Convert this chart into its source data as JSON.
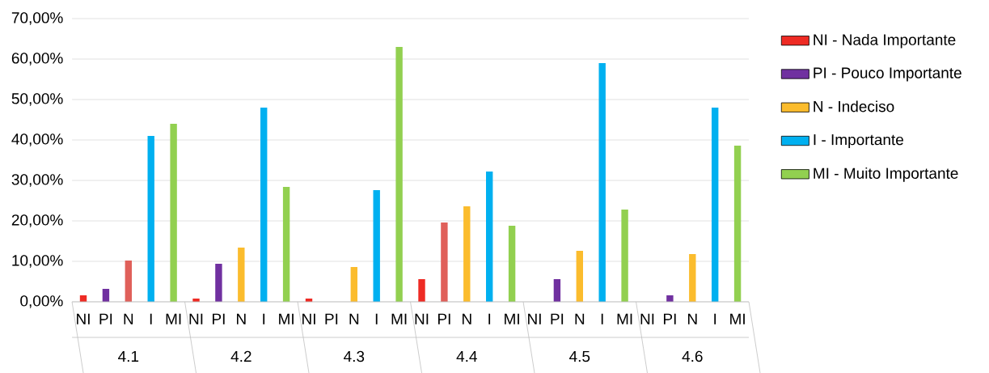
{
  "chart_data": {
    "type": "bar",
    "categories": [
      "NI",
      "PI",
      "N",
      "I",
      "MI",
      "NI",
      "PI",
      "N",
      "I",
      "MI",
      "NI",
      "PI",
      "N",
      "I",
      "MI",
      "NI",
      "PI",
      "N",
      "I",
      "MI",
      "NI",
      "PI",
      "N",
      "I",
      "MI",
      "NI",
      "PI",
      "N",
      "I",
      "MI"
    ],
    "series": [
      {
        "name": "NI - Nada Importante",
        "color": "#ee2b24",
        "values": [
          1.6,
          null,
          null,
          null,
          null,
          0.8,
          null,
          null,
          null,
          null,
          0.8,
          null,
          null,
          null,
          null,
          5.6,
          null,
          null,
          null,
          null,
          null,
          null,
          null,
          null,
          null,
          null,
          null,
          null,
          null,
          null
        ]
      },
      {
        "name": "PI - Pouco Importante",
        "color": "#7030a0",
        "colors": [
          null,
          "#7030a0",
          null,
          null,
          null,
          null,
          "#7030a0",
          null,
          null,
          null,
          null,
          "#7030a0",
          null,
          null,
          null,
          null,
          "#e0605a",
          null,
          null,
          null,
          null,
          "#7030a0",
          null,
          null,
          null,
          null,
          "#7030a0",
          null,
          null,
          null
        ],
        "values": [
          null,
          3.2,
          null,
          null,
          null,
          null,
          9.4,
          null,
          null,
          null,
          null,
          0,
          null,
          null,
          null,
          null,
          19.6,
          null,
          null,
          null,
          null,
          5.6,
          null,
          null,
          null,
          null,
          1.6,
          null,
          null,
          null
        ]
      },
      {
        "name": "N - Indeciso",
        "color": "#fbbc2d",
        "colors": [
          null,
          null,
          "#e0605a",
          null,
          null,
          null,
          null,
          "#fbbc2d",
          null,
          null,
          null,
          null,
          "#fbbc2d",
          null,
          null,
          null,
          null,
          "#fbbc2d",
          null,
          null,
          null,
          null,
          "#fbbc2d",
          null,
          null,
          null,
          null,
          "#fbbc2d",
          null,
          null
        ],
        "values": [
          null,
          null,
          10.2,
          null,
          null,
          null,
          null,
          13.4,
          null,
          null,
          null,
          null,
          8.6,
          null,
          null,
          null,
          null,
          23.6,
          null,
          null,
          null,
          null,
          12.6,
          null,
          null,
          null,
          null,
          11.8,
          null,
          null
        ]
      },
      {
        "name": "I - Importante",
        "color": "#00b0f0",
        "values": [
          null,
          null,
          null,
          41,
          null,
          null,
          null,
          null,
          48,
          null,
          null,
          null,
          null,
          27.6,
          null,
          null,
          null,
          null,
          32.2,
          null,
          null,
          null,
          null,
          59,
          null,
          null,
          null,
          null,
          48,
          null
        ]
      },
      {
        "name": "MI - Muito Importante",
        "color": "#92d050",
        "values": [
          null,
          null,
          null,
          null,
          44,
          null,
          null,
          null,
          null,
          28.4,
          null,
          null,
          null,
          null,
          63,
          null,
          null,
          null,
          null,
          18.8,
          null,
          null,
          null,
          null,
          22.8,
          null,
          null,
          null,
          null,
          38.6
        ]
      }
    ],
    "annotations": [
      "4.1",
      "4.2",
      "4.3",
      "4.4",
      "4.5",
      "4.6"
    ],
    "ylim": [
      0,
      70
    ],
    "yticks": [
      {
        "value": 0,
        "label": "0,00%"
      },
      {
        "value": 10,
        "label": "10,00%"
      },
      {
        "value": 20,
        "label": "20,00%"
      },
      {
        "value": 30,
        "label": "30,00%"
      },
      {
        "value": 40,
        "label": "40,00%"
      },
      {
        "value": 50,
        "label": "50,00%"
      },
      {
        "value": 60,
        "label": "60,00%"
      },
      {
        "value": 70,
        "label": "70,00%"
      }
    ],
    "grid": "y",
    "legend": "right"
  }
}
